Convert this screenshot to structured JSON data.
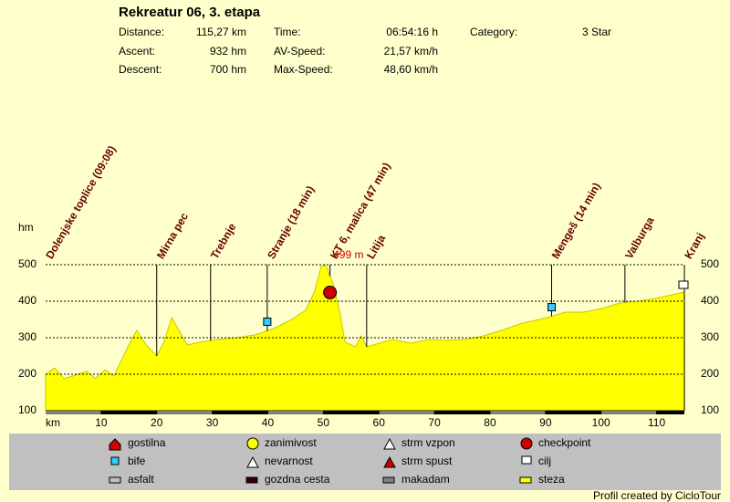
{
  "title": "Rekreatur 06, 3. etapa",
  "stats": [
    [
      "Distance:",
      "115,27 km"
    ],
    [
      "Ascent:",
      "932 hm"
    ],
    [
      "Descent:",
      "700 hm"
    ],
    [
      "Time:",
      "06:54:16 h"
    ],
    [
      "AV-Speed:",
      "21,57 km/h"
    ],
    [
      "Max-Speed:",
      "48,60 km/h"
    ],
    [
      "Category:",
      "3 Star"
    ]
  ],
  "chart_data": {
    "type": "area",
    "y_label": "hm",
    "x_label": "km",
    "color": "#ffff00",
    "grid": true,
    "x": [
      0,
      1.6,
      3.3,
      4.9,
      7.4,
      9.0,
      10.7,
      12.3,
      14.8,
      16.4,
      18.1,
      20.0,
      21.3,
      22.7,
      23.8,
      25.5,
      27.9,
      31.2,
      34.5,
      37.8,
      41.1,
      44.3,
      46.8,
      48.4,
      49.6,
      50.4,
      51.7,
      52.9,
      53.9,
      55.8,
      56.8,
      57.8,
      60.8,
      62.4,
      65.7,
      69.0,
      72.2,
      75.5,
      78.8,
      82.1,
      85.4,
      90.3,
      93.6,
      96.9,
      100.2,
      103.4,
      106.7,
      110.0,
      115.0
    ],
    "values": [
      200,
      217,
      188,
      195,
      208,
      188,
      212,
      195,
      275,
      320,
      280,
      250,
      288,
      355,
      325,
      280,
      288,
      295,
      300,
      308,
      325,
      350,
      375,
      425,
      495,
      499,
      450,
      375,
      288,
      275,
      305,
      275,
      288,
      295,
      285,
      295,
      293,
      295,
      305,
      320,
      338,
      355,
      370,
      370,
      380,
      395,
      400,
      408,
      425
    ],
    "xlim": [
      0,
      115
    ],
    "ylim": [
      100,
      500
    ],
    "xticks": [
      10,
      20,
      30,
      40,
      50,
      60,
      70,
      80,
      90,
      100,
      110
    ],
    "yticks": [
      100,
      200,
      300,
      400,
      500
    ],
    "waypoints": [
      {
        "name": "Dolenjske toplice (09:08)",
        "km": 0
      },
      {
        "name": "Mirna pec",
        "km": 20
      },
      {
        "name": "Trebnje",
        "km": 29.7
      },
      {
        "name": "Stranje (18 min)",
        "km": 39.9
      },
      {
        "name": "KT 6, malica (47 min)",
        "km": 51.2
      },
      {
        "name": "Litija",
        "km": 57.8
      },
      {
        "name": "Mengeš (14 min)",
        "km": 91.1
      },
      {
        "name": "Valburga",
        "km": 104.3
      },
      {
        "name": "Kranj",
        "km": 115
      }
    ],
    "annotation": "499 m"
  },
  "legend": [
    "gostilna",
    "zanimivost",
    "strm vzpon",
    "checkpoint",
    "bife",
    "nevarnost",
    "strm spust",
    "cilj",
    "asfalt",
    "gozdna cesta",
    "makadam",
    "steza"
  ],
  "footer": "Profil created by CicloTour"
}
